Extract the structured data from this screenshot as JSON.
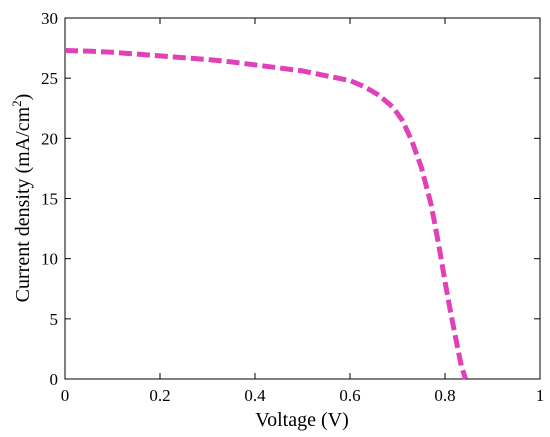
{
  "chart_data": {
    "type": "line",
    "xlabel": "Voltage (V)",
    "ylabel": {
      "text": "Current density  (mA/cm",
      "superscript": "2",
      "suffix": ")"
    },
    "xlim": [
      0,
      1
    ],
    "ylim": [
      0,
      30
    ],
    "x_ticks": [
      0,
      0.2,
      0.4,
      0.6,
      0.8,
      1
    ],
    "x_tick_labels": [
      "0",
      "0.2",
      "0.4",
      "0.6",
      "0.8",
      "1"
    ],
    "y_ticks": [
      0,
      5,
      10,
      15,
      20,
      25,
      30
    ],
    "y_tick_labels": [
      "0",
      "5",
      "10",
      "15",
      "20",
      "25",
      "30"
    ],
    "grid": false,
    "legend": "none",
    "series": [
      {
        "style": "dashed",
        "color": "#e040b8",
        "x": [
          0,
          0.05,
          0.1,
          0.15,
          0.2,
          0.25,
          0.3,
          0.35,
          0.4,
          0.45,
          0.5,
          0.55,
          0.6,
          0.63,
          0.66,
          0.69,
          0.71,
          0.73,
          0.75,
          0.77,
          0.78,
          0.79,
          0.8,
          0.81,
          0.82,
          0.83,
          0.835,
          0.84,
          0.843
        ],
        "values": [
          27.3,
          27.25,
          27.15,
          27.0,
          26.85,
          26.7,
          26.55,
          26.35,
          26.1,
          25.85,
          25.6,
          25.2,
          24.8,
          24.3,
          23.6,
          22.6,
          21.5,
          19.8,
          17.6,
          14.6,
          12.6,
          10.4,
          8.1,
          5.9,
          3.9,
          1.9,
          1.0,
          0.4,
          0.0
        ]
      }
    ]
  }
}
